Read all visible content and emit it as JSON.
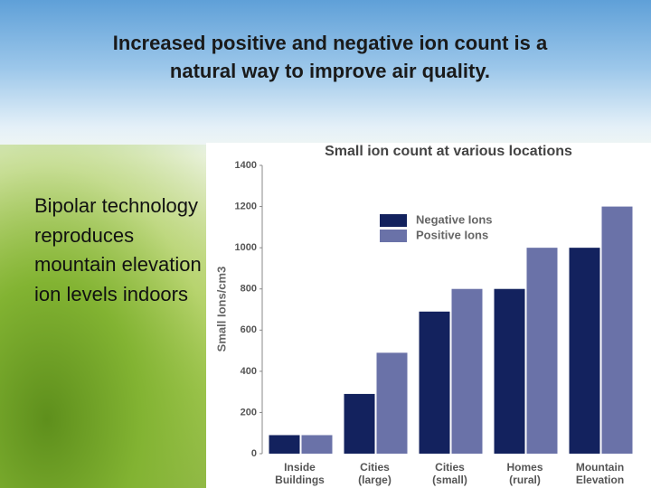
{
  "slide": {
    "title": "Increased positive and negative ion count is a natural way to improve air quality.",
    "bullets": [
      "Bipolar technology reproduces mountain elevation ion levels indoors"
    ]
  },
  "chart_data": {
    "type": "bar",
    "title": "Small ion count at various locations",
    "y_label": "Small Ions/cm3",
    "categories": [
      "Inside\nBuildings",
      "Cities\n(large)",
      "Cities\n(small)",
      "Homes\n(rural)",
      "Mountain\nElevation"
    ],
    "series": [
      {
        "name": "Negative Ions",
        "color": "#13225e",
        "values": [
          90,
          290,
          690,
          800,
          1000
        ]
      },
      {
        "name": "Positive Ions",
        "color": "#6a72a8",
        "values": [
          90,
          490,
          800,
          1000,
          1200
        ]
      }
    ],
    "ylim": [
      0,
      1400
    ],
    "yticks": [
      0,
      200,
      400,
      600,
      800,
      1000,
      1200,
      1400
    ],
    "legend": "upper-left"
  }
}
